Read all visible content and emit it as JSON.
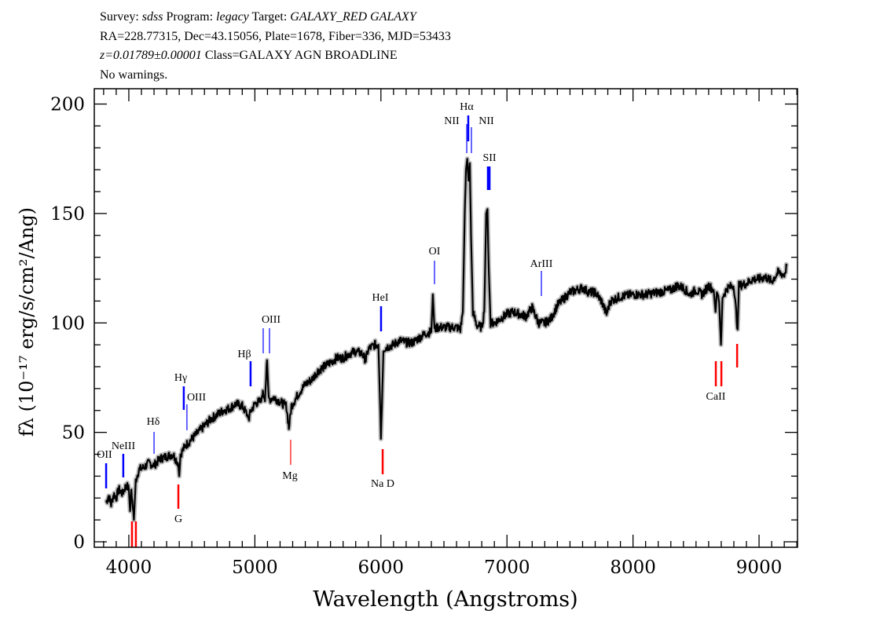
{
  "header": {
    "survey_label": "Survey:",
    "survey": "sdss",
    "program_label": "Program:",
    "program": "legacy",
    "target_label": "Target:",
    "target": "GALAXY_RED GALAXY",
    "line2": "RA=228.77315, Dec=43.15056, Plate=1678, Fiber=336, MJD=53433",
    "redshift": "z=0.01789±0.00001",
    "class": "Class=GALAXY AGN BROADLINE",
    "warnings": "No warnings."
  },
  "chart_data": {
    "type": "line",
    "xlabel": "Wavelength (Angstroms)",
    "ylabel": "fλ (10⁻¹⁷ erg/s/cm²/Ang)",
    "xlim": [
      3726,
      9305
    ],
    "ylim": [
      -2.5,
      207
    ],
    "x_ticks": [
      4000,
      5000,
      6000,
      7000,
      8000,
      9000
    ],
    "y_ticks": [
      0,
      50,
      100,
      150,
      200
    ],
    "grid": false,
    "colors": {
      "spectrum": "#000000",
      "error": "#bbbbbb",
      "emission": "#0000ff",
      "absorption": "#ff0000"
    },
    "series": [
      {
        "points": [
          [
            3820,
            18
          ],
          [
            3840,
            21
          ],
          [
            3860,
            17
          ],
          [
            3880,
            22
          ],
          [
            3900,
            20
          ],
          [
            3920,
            24
          ],
          [
            3950,
            22
          ],
          [
            3980,
            26
          ],
          [
            4000,
            24
          ],
          [
            4010,
            14
          ],
          [
            4020,
            24
          ],
          [
            4040,
            10
          ],
          [
            4055,
            28
          ],
          [
            4080,
            33
          ],
          [
            4120,
            34
          ],
          [
            4160,
            36
          ],
          [
            4200,
            35
          ],
          [
            4250,
            38
          ],
          [
            4300,
            39
          ],
          [
            4350,
            40
          ],
          [
            4390,
            36
          ],
          [
            4400,
            30
          ],
          [
            4410,
            40
          ],
          [
            4450,
            44
          ],
          [
            4500,
            47
          ],
          [
            4550,
            50
          ],
          [
            4600,
            53
          ],
          [
            4650,
            56
          ],
          [
            4700,
            58
          ],
          [
            4750,
            60
          ],
          [
            4800,
            61
          ],
          [
            4850,
            63
          ],
          [
            4900,
            62
          ],
          [
            4940,
            58
          ],
          [
            4950,
            56
          ],
          [
            4970,
            60
          ],
          [
            5000,
            63
          ],
          [
            5030,
            64
          ],
          [
            5050,
            64
          ],
          [
            5060,
            68
          ],
          [
            5080,
            66
          ],
          [
            5097,
            83
          ],
          [
            5110,
            65
          ],
          [
            5150,
            66
          ],
          [
            5200,
            64
          ],
          [
            5250,
            62
          ],
          [
            5270,
            52
          ],
          [
            5290,
            62
          ],
          [
            5350,
            68
          ],
          [
            5400,
            72
          ],
          [
            5450,
            74
          ],
          [
            5500,
            78
          ],
          [
            5550,
            80
          ],
          [
            5600,
            82
          ],
          [
            5650,
            84
          ],
          [
            5700,
            84
          ],
          [
            5750,
            86
          ],
          [
            5800,
            87
          ],
          [
            5850,
            86
          ],
          [
            5880,
            83
          ],
          [
            5900,
            88
          ],
          [
            5950,
            90
          ],
          [
            5980,
            90
          ],
          [
            5995,
            60
          ],
          [
            6000,
            47
          ],
          [
            6008,
            62
          ],
          [
            6020,
            88
          ],
          [
            6050,
            89
          ],
          [
            6100,
            90
          ],
          [
            6150,
            92
          ],
          [
            6200,
            91
          ],
          [
            6250,
            91
          ],
          [
            6300,
            93
          ],
          [
            6350,
            95
          ],
          [
            6400,
            96
          ],
          [
            6412,
            113
          ],
          [
            6425,
            97
          ],
          [
            6450,
            98
          ],
          [
            6500,
            98
          ],
          [
            6550,
            98
          ],
          [
            6600,
            98
          ],
          [
            6630,
            97
          ],
          [
            6650,
            105
          ],
          [
            6665,
            150
          ],
          [
            6675,
            170
          ],
          [
            6685,
            175
          ],
          [
            6695,
            165
          ],
          [
            6705,
            173
          ],
          [
            6715,
            140
          ],
          [
            6730,
            105
          ],
          [
            6760,
            99
          ],
          [
            6800,
            98
          ],
          [
            6820,
            105
          ],
          [
            6835,
            150
          ],
          [
            6845,
            152
          ],
          [
            6855,
            125
          ],
          [
            6870,
            100
          ],
          [
            6900,
            100
          ],
          [
            6950,
            102
          ],
          [
            7000,
            104
          ],
          [
            7050,
            105
          ],
          [
            7100,
            104
          ],
          [
            7150,
            103
          ],
          [
            7200,
            107
          ],
          [
            7250,
            100
          ],
          [
            7300,
            100
          ],
          [
            7350,
            102
          ],
          [
            7400,
            108
          ],
          [
            7450,
            111
          ],
          [
            7500,
            114
          ],
          [
            7550,
            115
          ],
          [
            7600,
            116
          ],
          [
            7650,
            114
          ],
          [
            7700,
            114
          ],
          [
            7750,
            110
          ],
          [
            7790,
            104
          ],
          [
            7820,
            110
          ],
          [
            7900,
            112
          ],
          [
            8000,
            113
          ],
          [
            8100,
            113
          ],
          [
            8200,
            114
          ],
          [
            8300,
            115
          ],
          [
            8350,
            117
          ],
          [
            8400,
            116
          ],
          [
            8450,
            113
          ],
          [
            8500,
            115
          ],
          [
            8550,
            113
          ],
          [
            8600,
            117
          ],
          [
            8640,
            115
          ],
          [
            8655,
            105
          ],
          [
            8665,
            114
          ],
          [
            8680,
            112
          ],
          [
            8698,
            90
          ],
          [
            8710,
            112
          ],
          [
            8750,
            116
          ],
          [
            8800,
            117
          ],
          [
            8830,
            97
          ],
          [
            8840,
            117
          ],
          [
            8900,
            118
          ],
          [
            8950,
            120
          ],
          [
            9000,
            120
          ],
          [
            9050,
            121
          ],
          [
            9100,
            119
          ],
          [
            9150,
            123
          ],
          [
            9200,
            122
          ],
          [
            9220,
            126
          ]
        ]
      }
    ],
    "annotations": [
      {
        "label": "OII",
        "wavelengths": [
          3820
        ],
        "kind": "emission",
        "strength": "strong"
      },
      {
        "label": "NeIII",
        "wavelengths": [
          3956
        ],
        "kind": "emission",
        "strength": "strong"
      },
      {
        "label": "Hδ",
        "wavelengths": [
          4200
        ],
        "kind": "emission",
        "strength": "weak"
      },
      {
        "label": "Hγ",
        "wavelengths": [
          4436
        ],
        "kind": "emission",
        "strength": "strong"
      },
      {
        "label": "OIII",
        "wavelengths": [
          4461
        ],
        "kind": "emission",
        "strength": "weak"
      },
      {
        "label": "Hβ",
        "wavelengths": [
          4966
        ],
        "kind": "emission",
        "strength": "strong"
      },
      {
        "label": "OIII",
        "wavelengths": [
          5066,
          5116
        ],
        "kind": "emission",
        "strength": "weak"
      },
      {
        "label": "Mg",
        "wavelengths": [
          5284
        ],
        "kind": "absorption",
        "strength": "weak"
      },
      {
        "label": "HeI",
        "wavelengths": [
          6001
        ],
        "kind": "emission",
        "strength": "strong"
      },
      {
        "label": "Na  D",
        "wavelengths": [
          6014
        ],
        "kind": "absorption",
        "strength": "strong"
      },
      {
        "label": "OI",
        "wavelengths": [
          6425
        ],
        "kind": "emission",
        "strength": "weak"
      },
      {
        "label": "NII",
        "wavelengths": [
          6681
        ],
        "kind": "emission",
        "strength": "weak"
      },
      {
        "label": "Hα",
        "wavelengths": [
          6693
        ],
        "kind": "emission",
        "strength": "strong"
      },
      {
        "label": "NII",
        "wavelengths": [
          6718
        ],
        "kind": "emission",
        "strength": "weak"
      },
      {
        "label": "SII",
        "wavelengths": [
          6849,
          6862
        ],
        "kind": "emission",
        "strength": "strong"
      },
      {
        "label": "ArIII",
        "wavelengths": [
          7273
        ],
        "kind": "emission",
        "strength": "weak"
      },
      {
        "label": "G",
        "wavelengths": [
          4393
        ],
        "kind": "absorption",
        "strength": "strong"
      },
      {
        "label": "",
        "wavelengths": [
          4025,
          4056
        ],
        "kind": "absorption",
        "strength": "strong"
      },
      {
        "label": "CaII",
        "wavelengths": [
          8657,
          8701,
          8826
        ],
        "kind": "absorption",
        "strength": "strong"
      }
    ]
  }
}
